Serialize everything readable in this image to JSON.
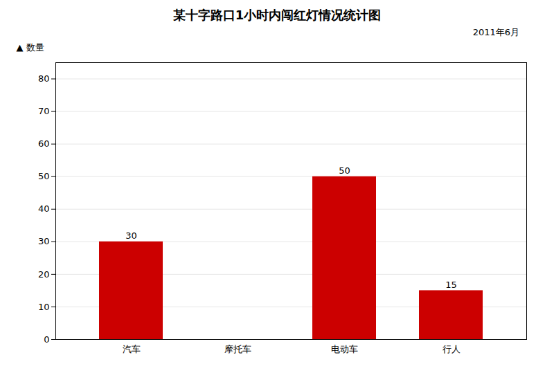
{
  "chart_data": {
    "type": "bar",
    "title": "某十字路口1小时内闯红灯情况统计图",
    "subtitle": "2011年6月",
    "ylabel": "▲ 数量",
    "categories": [
      "汽车",
      "摩托车",
      "电动车",
      "行人"
    ],
    "values": [
      30,
      0,
      50,
      15
    ],
    "value_labels": [
      "30",
      null,
      "50",
      "15"
    ],
    "data_labels": true,
    "color": "#cc0000",
    "ylim": [
      0,
      85
    ],
    "yticks": [
      0,
      10,
      20,
      30,
      40,
      50,
      60,
      70,
      80
    ],
    "grid": true
  }
}
